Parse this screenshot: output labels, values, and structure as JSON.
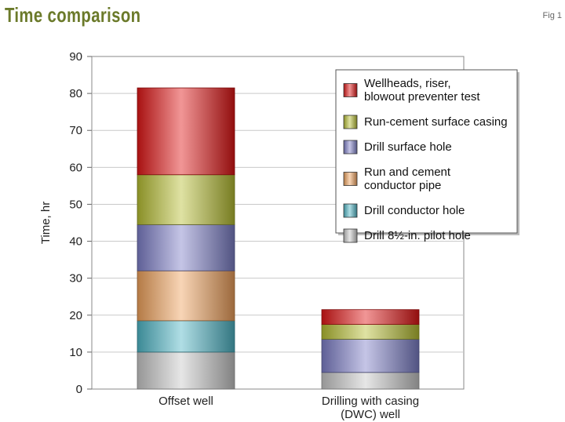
{
  "header": {
    "title": "Time comparison",
    "fig_label": "Fig 1"
  },
  "chart_data": {
    "type": "bar",
    "stacked": true,
    "title": "",
    "xlabel": "",
    "ylabel": "Time, hr",
    "ylim": [
      0,
      90
    ],
    "yticks": [
      0,
      10,
      20,
      30,
      40,
      50,
      60,
      70,
      80,
      90
    ],
    "categories": [
      "Offset well",
      "Drilling with casing (DWC) well"
    ],
    "category_lines": [
      [
        "Offset well"
      ],
      [
        "Drilling with casing",
        "(DWC) well"
      ]
    ],
    "legend_position": "top-right",
    "series": [
      {
        "name": "Drill 81/2-in. pilot hole",
        "label_lines": [
          "Drill 8½-in. pilot hole"
        ],
        "color": "#c8c8c8",
        "values": [
          10,
          4.5
        ]
      },
      {
        "name": "Drill conductor hole",
        "label_lines": [
          "Drill conductor hole"
        ],
        "color": "#4fb6c6",
        "values": [
          8.5,
          0
        ]
      },
      {
        "name": "Run and cement conductor pipe",
        "label_lines": [
          "Run and cement",
          "conductor pipe"
        ],
        "color": "#f0a25c",
        "values": [
          13.5,
          0
        ]
      },
      {
        "name": "Drill surface hole",
        "label_lines": [
          "Drill surface hole"
        ],
        "color": "#7d7fc8",
        "values": [
          12.5,
          9
        ]
      },
      {
        "name": "Run-cement surface casing",
        "label_lines": [
          "Run-cement surface casing"
        ],
        "color": "#b7bf32",
        "values": [
          13.5,
          4
        ]
      },
      {
        "name": "Wellheads, riser, blowout preventer test",
        "label_lines": [
          "Wellheads, riser,",
          "blowout preventer test"
        ],
        "color": "#e01616",
        "values": [
          23.5,
          4
        ]
      }
    ]
  }
}
